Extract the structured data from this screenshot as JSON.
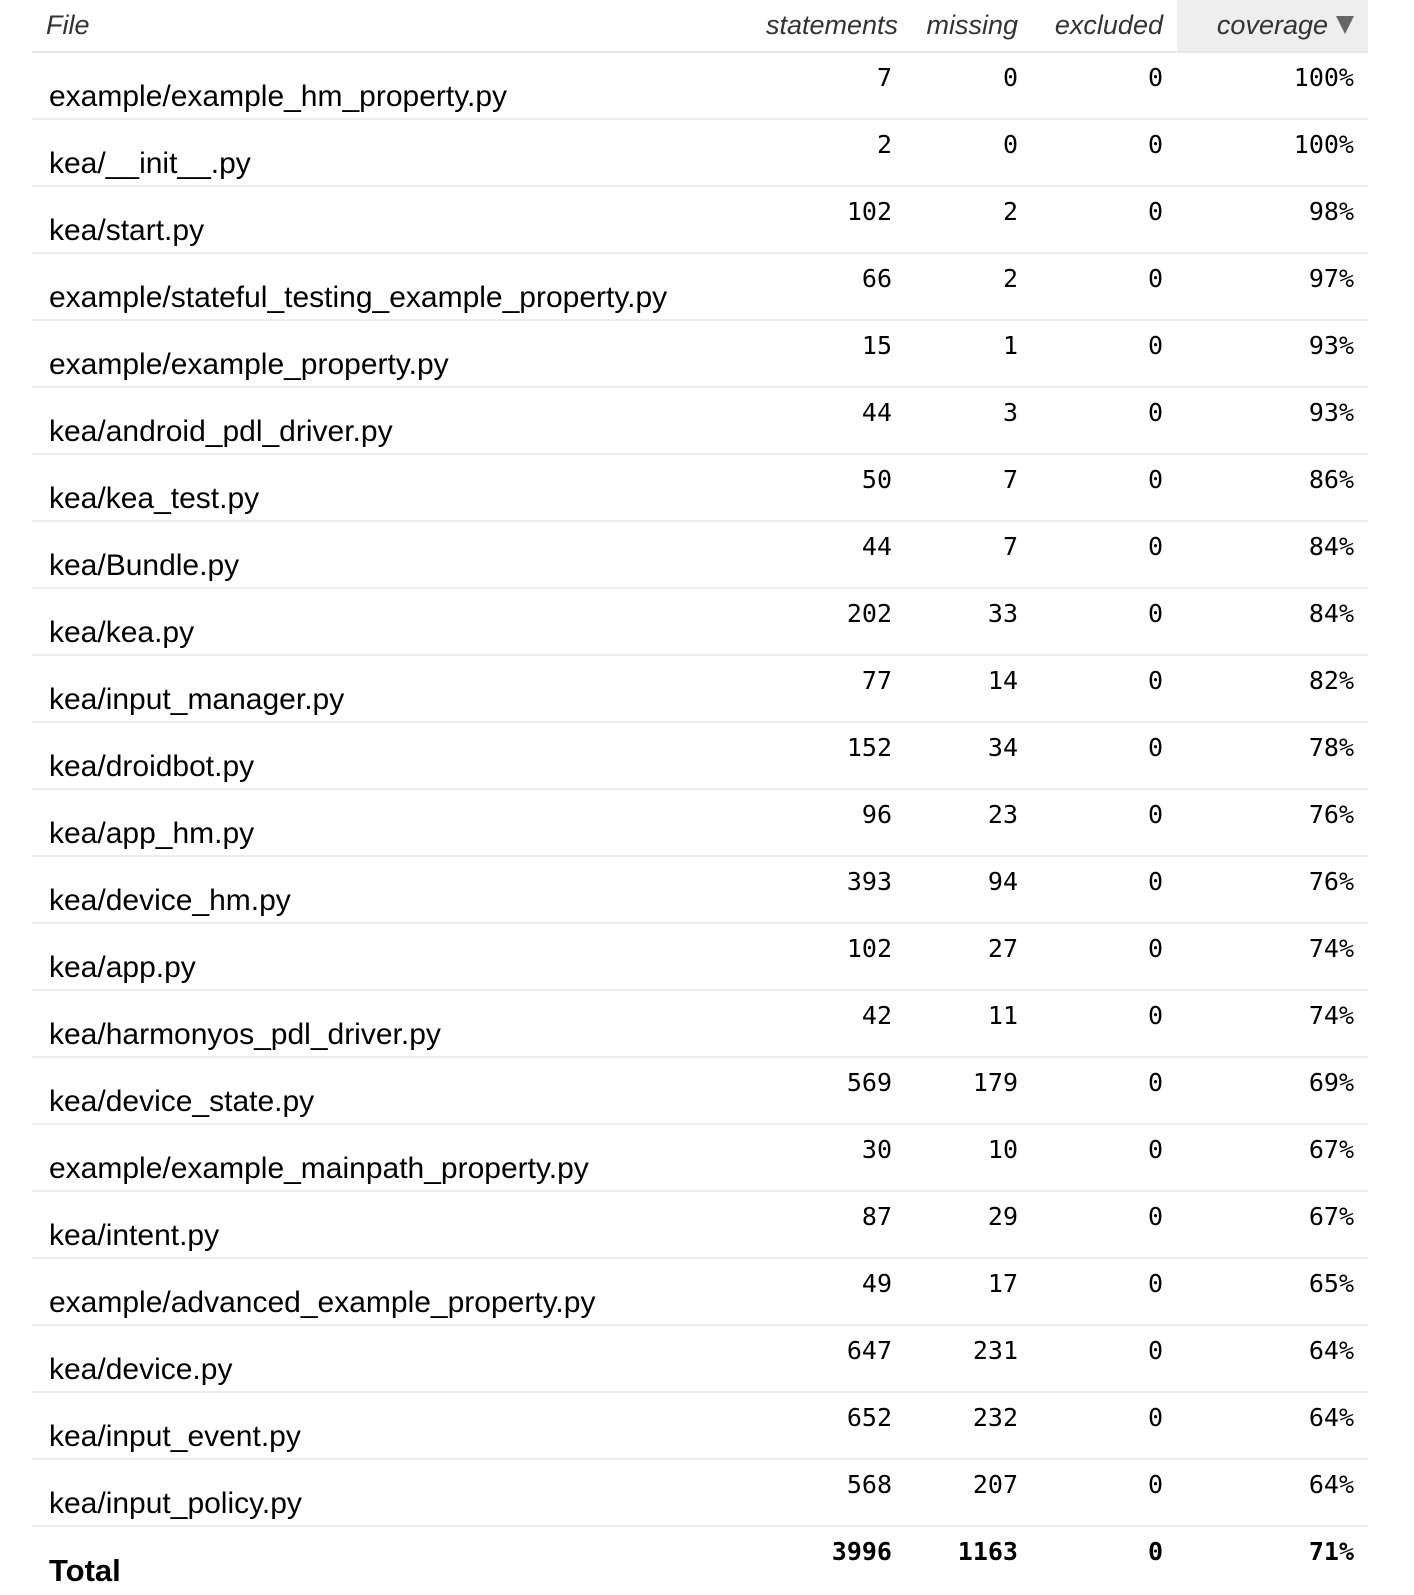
{
  "columns": {
    "file": "File",
    "statements": "statements",
    "missing": "missing",
    "excluded": "excluded",
    "coverage": "coverage"
  },
  "sort_icon": "sort-descending-icon",
  "rows": [
    {
      "file": "example/example_hm_property.py",
      "statements": "7",
      "missing": "0",
      "excluded": "0",
      "coverage": "100%"
    },
    {
      "file": "kea/__init__.py",
      "statements": "2",
      "missing": "0",
      "excluded": "0",
      "coverage": "100%"
    },
    {
      "file": "kea/start.py",
      "statements": "102",
      "missing": "2",
      "excluded": "0",
      "coverage": "98%"
    },
    {
      "file": "example/stateful_testing_example_property.py",
      "statements": "66",
      "missing": "2",
      "excluded": "0",
      "coverage": "97%"
    },
    {
      "file": "example/example_property.py",
      "statements": "15",
      "missing": "1",
      "excluded": "0",
      "coverage": "93%"
    },
    {
      "file": "kea/android_pdl_driver.py",
      "statements": "44",
      "missing": "3",
      "excluded": "0",
      "coverage": "93%"
    },
    {
      "file": "kea/kea_test.py",
      "statements": "50",
      "missing": "7",
      "excluded": "0",
      "coverage": "86%"
    },
    {
      "file": "kea/Bundle.py",
      "statements": "44",
      "missing": "7",
      "excluded": "0",
      "coverage": "84%"
    },
    {
      "file": "kea/kea.py",
      "statements": "202",
      "missing": "33",
      "excluded": "0",
      "coverage": "84%"
    },
    {
      "file": "kea/input_manager.py",
      "statements": "77",
      "missing": "14",
      "excluded": "0",
      "coverage": "82%"
    },
    {
      "file": "kea/droidbot.py",
      "statements": "152",
      "missing": "34",
      "excluded": "0",
      "coverage": "78%"
    },
    {
      "file": "kea/app_hm.py",
      "statements": "96",
      "missing": "23",
      "excluded": "0",
      "coverage": "76%"
    },
    {
      "file": "kea/device_hm.py",
      "statements": "393",
      "missing": "94",
      "excluded": "0",
      "coverage": "76%"
    },
    {
      "file": "kea/app.py",
      "statements": "102",
      "missing": "27",
      "excluded": "0",
      "coverage": "74%"
    },
    {
      "file": "kea/harmonyos_pdl_driver.py",
      "statements": "42",
      "missing": "11",
      "excluded": "0",
      "coverage": "74%"
    },
    {
      "file": "kea/device_state.py",
      "statements": "569",
      "missing": "179",
      "excluded": "0",
      "coverage": "69%"
    },
    {
      "file": "example/example_mainpath_property.py",
      "statements": "30",
      "missing": "10",
      "excluded": "0",
      "coverage": "67%"
    },
    {
      "file": "kea/intent.py",
      "statements": "87",
      "missing": "29",
      "excluded": "0",
      "coverage": "67%"
    },
    {
      "file": "example/advanced_example_property.py",
      "statements": "49",
      "missing": "17",
      "excluded": "0",
      "coverage": "65%"
    },
    {
      "file": "kea/device.py",
      "statements": "647",
      "missing": "231",
      "excluded": "0",
      "coverage": "64%"
    },
    {
      "file": "kea/input_event.py",
      "statements": "652",
      "missing": "232",
      "excluded": "0",
      "coverage": "64%"
    },
    {
      "file": "kea/input_policy.py",
      "statements": "568",
      "missing": "207",
      "excluded": "0",
      "coverage": "64%"
    }
  ],
  "total": {
    "label": "Total",
    "statements": "3996",
    "missing": "1163",
    "excluded": "0",
    "coverage": "71%"
  }
}
